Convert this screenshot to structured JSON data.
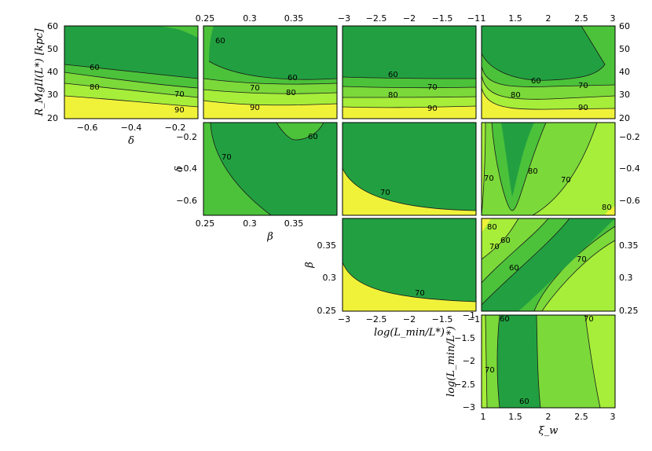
{
  "colors": {
    "lvl_lt60": "#22a041",
    "lvl_60_70": "#4bc23a",
    "lvl_70_80": "#7bd93a",
    "lvl_80_90": "#a6ee3a",
    "lvl_gt90": "#f0f23a",
    "contour": "#1a1a1a"
  },
  "chart_data": [
    {
      "id": "R_vs_delta",
      "type": "contour",
      "xlabel": "δ",
      "ylabel": "R_MgII(L*) [kpc]",
      "xticks": [
        "−0.6",
        "−0.4",
        "−0.2"
      ],
      "yticks": [
        "20",
        "30",
        "40",
        "50",
        "60"
      ],
      "xlim": [
        -0.7,
        -0.1
      ],
      "ylim": [
        20,
        60
      ],
      "contour_labels": [
        "60",
        "70",
        "80",
        "90"
      ]
    },
    {
      "id": "R_vs_beta",
      "type": "contour",
      "xticks_top": [
        "0.25",
        "0.3",
        "0.35"
      ],
      "xlim": [
        0.25,
        0.4
      ],
      "ylim": [
        20,
        60
      ],
      "contour_labels": [
        "60",
        "60",
        "70",
        "80",
        "90"
      ]
    },
    {
      "id": "R_vs_logLmin",
      "type": "contour",
      "xticks_top": [
        "−3",
        "−2.5",
        "−2",
        "−1.5",
        "−1"
      ],
      "xlim": [
        -3,
        -1
      ],
      "ylim": [
        20,
        60
      ],
      "contour_labels": [
        "60",
        "70",
        "80",
        "90"
      ]
    },
    {
      "id": "R_vs_xiw",
      "type": "contour",
      "xticks_top": [
        "1",
        "1.5",
        "2",
        "2.5",
        "3"
      ],
      "yticks_right": [
        "20",
        "30",
        "40",
        "50",
        "60"
      ],
      "xlim": [
        1,
        3
      ],
      "ylim": [
        20,
        60
      ],
      "contour_labels": [
        "60",
        "70",
        "80",
        "90"
      ]
    },
    {
      "id": "delta_vs_beta",
      "type": "contour",
      "xlabel": "β",
      "ylabel": "δ",
      "xticks": [
        "0.25",
        "0.3",
        "0.35"
      ],
      "yticks": [
        "−0.6",
        "−0.4",
        "−0.2"
      ],
      "xlim": [
        0.25,
        0.4
      ],
      "ylim": [
        -0.7,
        -0.1
      ],
      "contour_labels": [
        "60",
        "70"
      ]
    },
    {
      "id": "delta_vs_logLmin",
      "type": "contour",
      "xlim": [
        -3,
        -1
      ],
      "ylim": [
        -0.7,
        -0.1
      ],
      "contour_labels": [
        "70"
      ]
    },
    {
      "id": "delta_vs_xiw",
      "type": "contour",
      "yticks_right": [
        "−0.6",
        "−0.4",
        "−0.2"
      ],
      "xlim": [
        1,
        3
      ],
      "ylim": [
        -0.7,
        -0.1
      ],
      "contour_labels": [
        "70",
        "80",
        "70",
        "80"
      ]
    },
    {
      "id": "beta_vs_logLmin",
      "type": "contour",
      "xlabel": "log(L_min/L*)",
      "ylabel": "β",
      "xticks": [
        "−3",
        "−2.5",
        "−2",
        "−1.5",
        "−1"
      ],
      "yticks": [
        "0.25",
        "0.3",
        "0.35"
      ],
      "xlim": [
        -3,
        -1
      ],
      "ylim": [
        0.25,
        0.4
      ],
      "contour_labels": [
        "70"
      ]
    },
    {
      "id": "beta_vs_xiw",
      "type": "contour",
      "yticks_right": [
        "0.25",
        "0.3",
        "0.35"
      ],
      "xlim": [
        1,
        3
      ],
      "ylim": [
        0.25,
        0.4
      ],
      "contour_labels": [
        "80",
        "70",
        "60",
        "60",
        "70"
      ]
    },
    {
      "id": "logLmin_vs_xiw",
      "type": "contour",
      "xlabel": "ξ_w",
      "ylabel": "log(L_min/L*)",
      "xticks": [
        "1",
        "1.5",
        "2",
        "2.5",
        "3"
      ],
      "yticks": [
        "−3",
        "−2.5",
        "−2",
        "−1.5",
        "−1"
      ],
      "xlim": [
        1,
        3
      ],
      "ylim": [
        -3,
        -1
      ],
      "contour_labels": [
        "60",
        "70",
        "60",
        "70"
      ]
    }
  ]
}
